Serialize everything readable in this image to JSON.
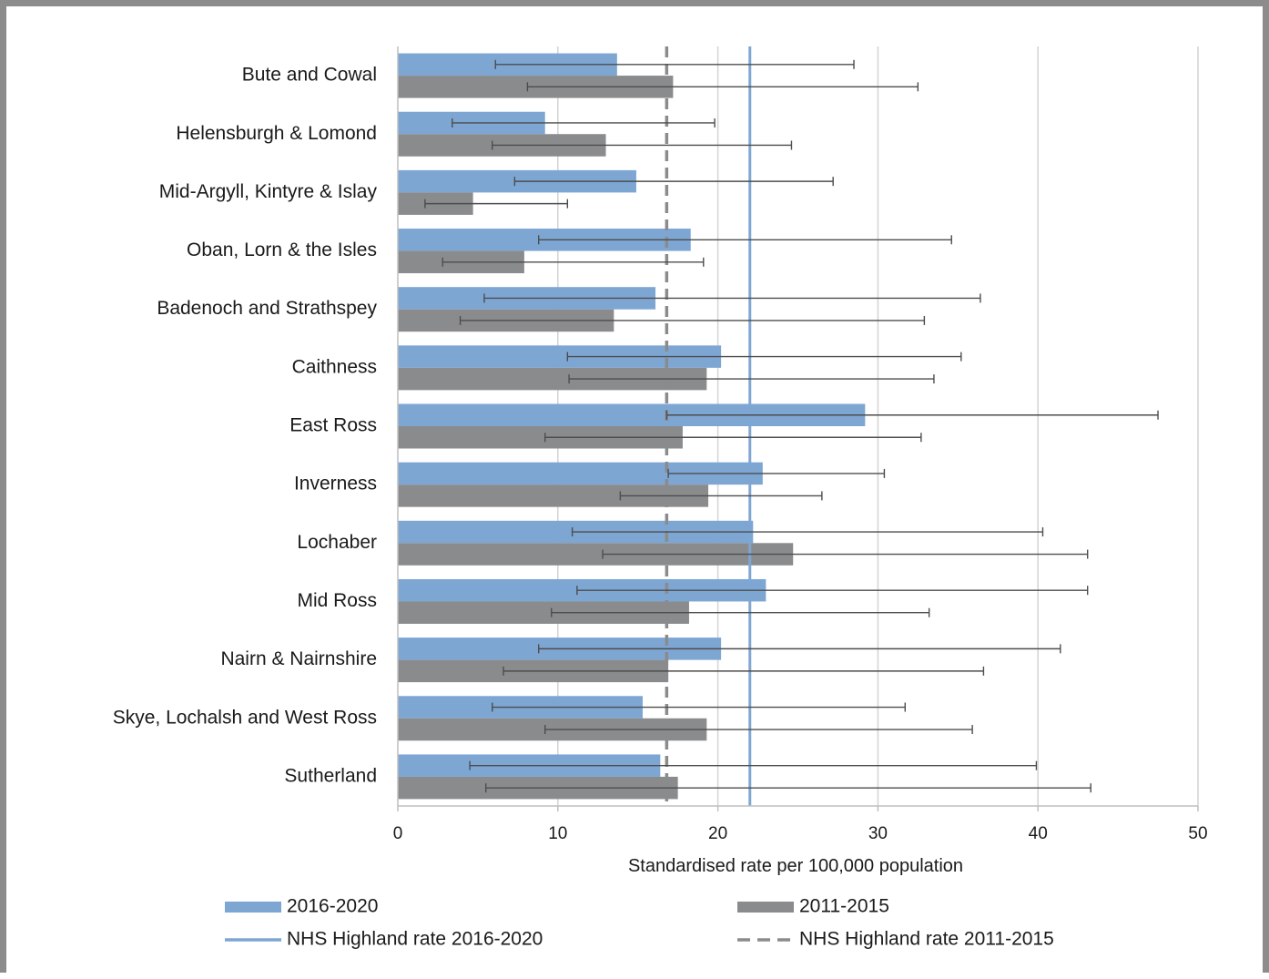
{
  "chart_data": {
    "type": "bar",
    "orientation": "horizontal",
    "xlabel": "Standardised rate per 100,000 population",
    "xlim": [
      0,
      50
    ],
    "xticks": [
      0,
      10,
      20,
      30,
      40,
      50
    ],
    "grid": true,
    "legend_position": "bottom",
    "categories": [
      "Bute and Cowal",
      "Helensburgh & Lomond",
      "Mid-Argyll, Kintyre & Islay",
      "Oban, Lorn & the Isles",
      "Badenoch and Strathspey",
      "Caithness",
      "East Ross",
      "Inverness",
      "Lochaber",
      "Mid Ross",
      "Nairn & Nairnshire",
      "Skye, Lochalsh and West Ross",
      "Sutherland"
    ],
    "series": [
      {
        "name": "2016-2020",
        "color": "#7ea6d3",
        "values": [
          13.7,
          9.2,
          14.9,
          18.3,
          16.1,
          20.2,
          29.2,
          22.8,
          22.2,
          23.0,
          20.2,
          15.3,
          16.4
        ],
        "ci_low": [
          6.1,
          3.4,
          7.3,
          8.8,
          5.4,
          10.6,
          16.8,
          16.9,
          10.9,
          11.2,
          8.8,
          5.9,
          4.5
        ],
        "ci_high": [
          28.5,
          19.8,
          27.2,
          34.6,
          36.4,
          35.2,
          47.5,
          30.4,
          40.3,
          43.1,
          41.4,
          31.7,
          39.9
        ]
      },
      {
        "name": "2011-2015",
        "color": "#898b8d",
        "values": [
          17.2,
          13.0,
          4.7,
          7.9,
          13.5,
          19.3,
          17.8,
          19.4,
          24.7,
          18.2,
          16.9,
          19.3,
          17.5
        ],
        "ci_low": [
          8.1,
          5.9,
          1.7,
          2.8,
          3.9,
          10.7,
          9.2,
          13.9,
          12.8,
          9.6,
          6.6,
          9.2,
          5.5
        ],
        "ci_high": [
          32.5,
          24.6,
          10.6,
          19.1,
          32.9,
          33.5,
          32.7,
          26.5,
          43.1,
          33.2,
          36.6,
          35.9,
          43.3
        ]
      }
    ],
    "reference_lines": [
      {
        "name": "NHS Highland rate 2016-2020",
        "value": 22.0,
        "color": "#7ea6d3",
        "style": "solid"
      },
      {
        "name": "NHS Highland rate 2011-2015",
        "value": 16.8,
        "color": "#898b8d",
        "style": "dashed"
      }
    ]
  }
}
